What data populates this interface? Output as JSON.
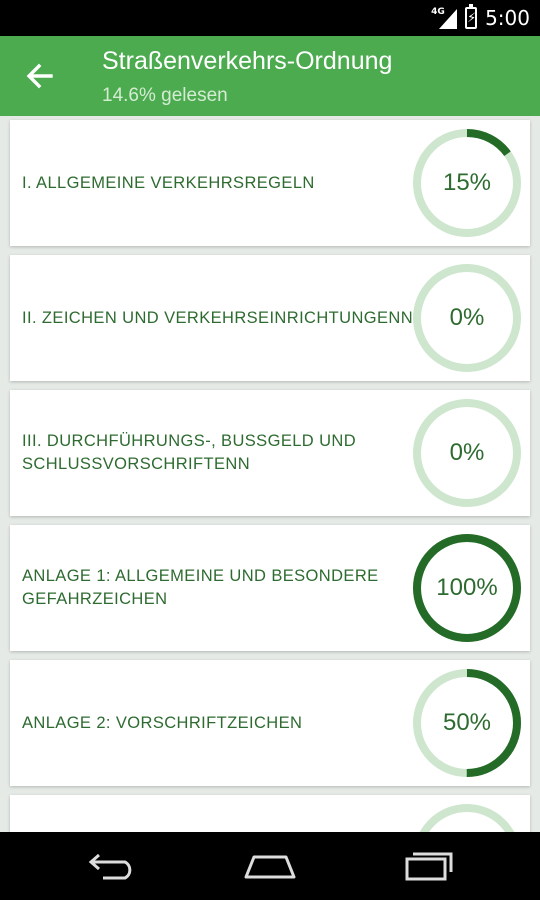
{
  "status_bar": {
    "network": "4G",
    "time": "5:00",
    "icons": [
      "signal-icon",
      "battery-charging-icon"
    ]
  },
  "header": {
    "back_icon": "arrow-left-icon",
    "title": "Straßenverkehrs-Ordnung",
    "subtitle": "14.6% gelesen"
  },
  "colors": {
    "app_bar": "#4caa4f",
    "ring_track": "#cde6cd",
    "ring_progress": "#236b26",
    "text": "#2e6b30"
  },
  "sections": [
    {
      "label": "I. ALLGEMEINE VERKEHRSREGELN",
      "percent_label": "15%",
      "progress": 0.15
    },
    {
      "label": "II. ZEICHEN UND VERKEHRSEINRICHTUNGENN",
      "percent_label": "0%",
      "progress": 0.0
    },
    {
      "label": "III. DURCHFÜHRUNGS-, BUSSGELD UND SCHLUSSVORSCHRIFTENN",
      "percent_label": "0%",
      "progress": 0.0
    },
    {
      "label": "ANLAGE 1: ALLGEMEINE UND BESONDERE GEFAHRZEICHEN",
      "percent_label": "100%",
      "progress": 1.0
    },
    {
      "label": "ANLAGE 2: VORSCHRIFTZEICHEN",
      "percent_label": "50%",
      "progress": 0.5
    },
    {
      "label": "",
      "percent_label": "",
      "progress": 0.0
    }
  ],
  "nav_bar": {
    "buttons": [
      "back-nav-icon",
      "home-nav-icon",
      "recent-apps-icon"
    ]
  }
}
